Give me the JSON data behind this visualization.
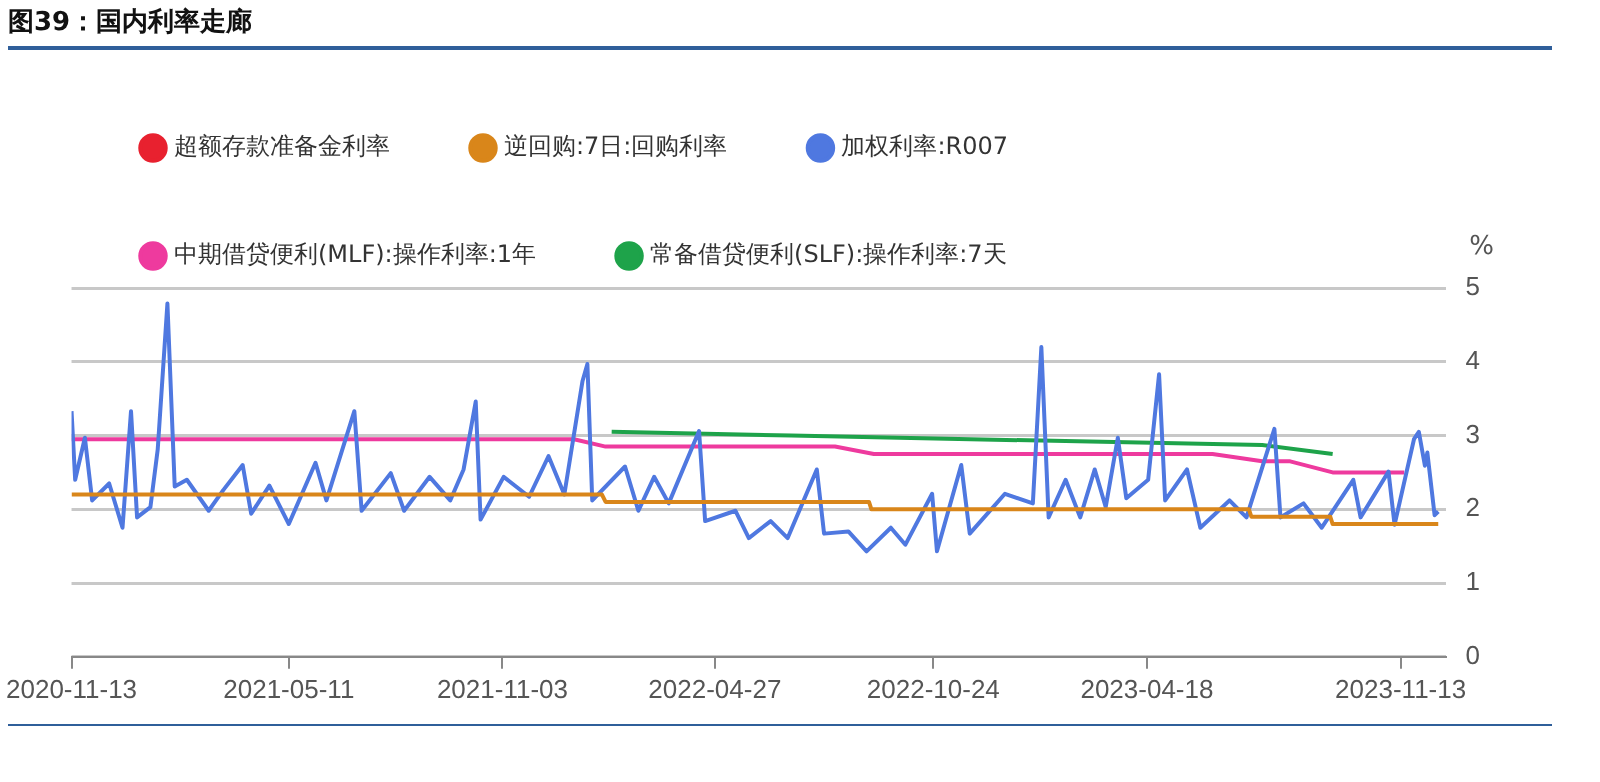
{
  "chart_data": {
    "type": "line",
    "title": "图39：国内利率走廊",
    "ylabel": "%",
    "xlim": [
      "2020-11-13",
      "2023-12-20"
    ],
    "xticks": [
      "2020-11-13",
      "2021-05-11",
      "2021-11-03",
      "2022-04-27",
      "2022-10-24",
      "2023-04-18",
      "2023-11-13"
    ],
    "ylim": [
      0,
      5
    ],
    "yticks": [
      0,
      1,
      2,
      3,
      4,
      5
    ],
    "grid": "y",
    "legend": "top left",
    "marker": "none",
    "line_style": "solid",
    "series": [
      {
        "name": "超额存款准备金利率",
        "color": "#e8212f"
      },
      {
        "name": "逆回购:7日:回购利率",
        "color": "#d9861a",
        "x": [
          "2020-11-13",
          "2022-01-24",
          "2022-01-27",
          "2022-09-01",
          "2022-09-03",
          "2023-07-11",
          "2023-07-13",
          "2023-09-16",
          "2023-09-18",
          "2023-12-14"
        ],
        "values": [
          2.2,
          2.2,
          2.1,
          2.1,
          2.0,
          2.0,
          1.9,
          1.9,
          1.8,
          1.8
        ]
      },
      {
        "name": "加权利率:R007",
        "color": "#4f78e0",
        "x": [
          "2020-11-13",
          "2020-11-16",
          "2020-11-24",
          "2020-11-30",
          "2020-12-14",
          "2020-12-25",
          "2021-01-01",
          "2021-01-06",
          "2021-01-17",
          "2021-01-23",
          "2021-01-31",
          "2021-02-06",
          "2021-02-16",
          "2021-03-06",
          "2021-03-18",
          "2021-04-03",
          "2021-04-10",
          "2021-04-25",
          "2021-05-11",
          "2021-06-02",
          "2021-06-11",
          "2021-07-04",
          "2021-07-10",
          "2021-08-03",
          "2021-08-14",
          "2021-09-04",
          "2021-09-21",
          "2021-10-02",
          "2021-10-12",
          "2021-10-16",
          "2021-11-04",
          "2021-11-25",
          "2021-12-11",
          "2021-12-24",
          "2022-01-08",
          "2022-01-12",
          "2022-01-16",
          "2022-02-12",
          "2022-02-23",
          "2022-03-08",
          "2022-03-20",
          "2022-04-14",
          "2022-04-19",
          "2022-05-14",
          "2022-05-25",
          "2022-06-12",
          "2022-06-26",
          "2022-07-20",
          "2022-07-26",
          "2022-08-15",
          "2022-08-30",
          "2022-09-19",
          "2022-10-01",
          "2022-10-23",
          "2022-10-27",
          "2022-11-16",
          "2022-11-23",
          "2022-12-22",
          "2023-01-14",
          "2023-01-21",
          "2023-01-27",
          "2023-02-10",
          "2023-02-22",
          "2023-03-06",
          "2023-03-15",
          "2023-03-25",
          "2023-04-01",
          "2023-04-19",
          "2023-04-28",
          "2023-05-03",
          "2023-05-21",
          "2023-06-01",
          "2023-06-25",
          "2023-07-09",
          "2023-08-01",
          "2023-08-06",
          "2023-08-25",
          "2023-09-09",
          "2023-10-05",
          "2023-10-11",
          "2023-11-03",
          "2023-11-08",
          "2023-11-24",
          "2023-11-28",
          "2023-12-03",
          "2023-12-05",
          "2023-12-11",
          "2023-12-14"
        ],
        "values": [
          3.33,
          2.4,
          2.97,
          2.12,
          2.35,
          1.75,
          3.33,
          1.89,
          2.03,
          2.81,
          4.79,
          2.31,
          2.4,
          1.98,
          2.26,
          2.6,
          1.94,
          2.32,
          1.8,
          2.63,
          2.12,
          3.33,
          1.98,
          2.49,
          1.98,
          2.44,
          2.12,
          2.54,
          3.46,
          1.86,
          2.44,
          2.17,
          2.72,
          2.2,
          3.74,
          3.97,
          2.12,
          2.58,
          1.98,
          2.44,
          2.08,
          3.06,
          1.84,
          1.98,
          1.61,
          1.84,
          1.61,
          2.54,
          1.67,
          1.7,
          1.43,
          1.75,
          1.52,
          2.21,
          1.43,
          2.6,
          1.67,
          2.21,
          2.08,
          4.2,
          1.89,
          2.4,
          1.89,
          2.54,
          2.03,
          2.97,
          2.15,
          2.4,
          3.83,
          2.12,
          2.54,
          1.75,
          2.12,
          1.89,
          3.09,
          1.89,
          2.08,
          1.75,
          2.4,
          1.89,
          2.51,
          1.79,
          2.95,
          3.05,
          2.59,
          2.77,
          1.92,
          1.97
        ]
      },
      {
        "name": "中期借贷便利(MLF):操作利率:1年",
        "color": "#ee3a9e",
        "x": [
          "2020-11-13",
          "2022-01-01",
          "2022-01-27",
          "2022-08-04",
          "2022-09-05",
          "2023-06-11",
          "2023-07-22",
          "2023-08-14",
          "2023-09-18",
          "2023-11-16"
        ],
        "values": [
          2.95,
          2.95,
          2.85,
          2.85,
          2.75,
          2.75,
          2.65,
          2.65,
          2.5,
          2.5
        ]
      },
      {
        "name": "常备借贷便利(SLF):操作利率:7天",
        "color": "#1ea34a",
        "x": [
          "2022-02-01",
          "2022-06-29",
          "2023-07-22",
          "2023-09-18"
        ],
        "values": [
          3.05,
          3.0,
          2.87,
          2.75
        ]
      }
    ]
  }
}
